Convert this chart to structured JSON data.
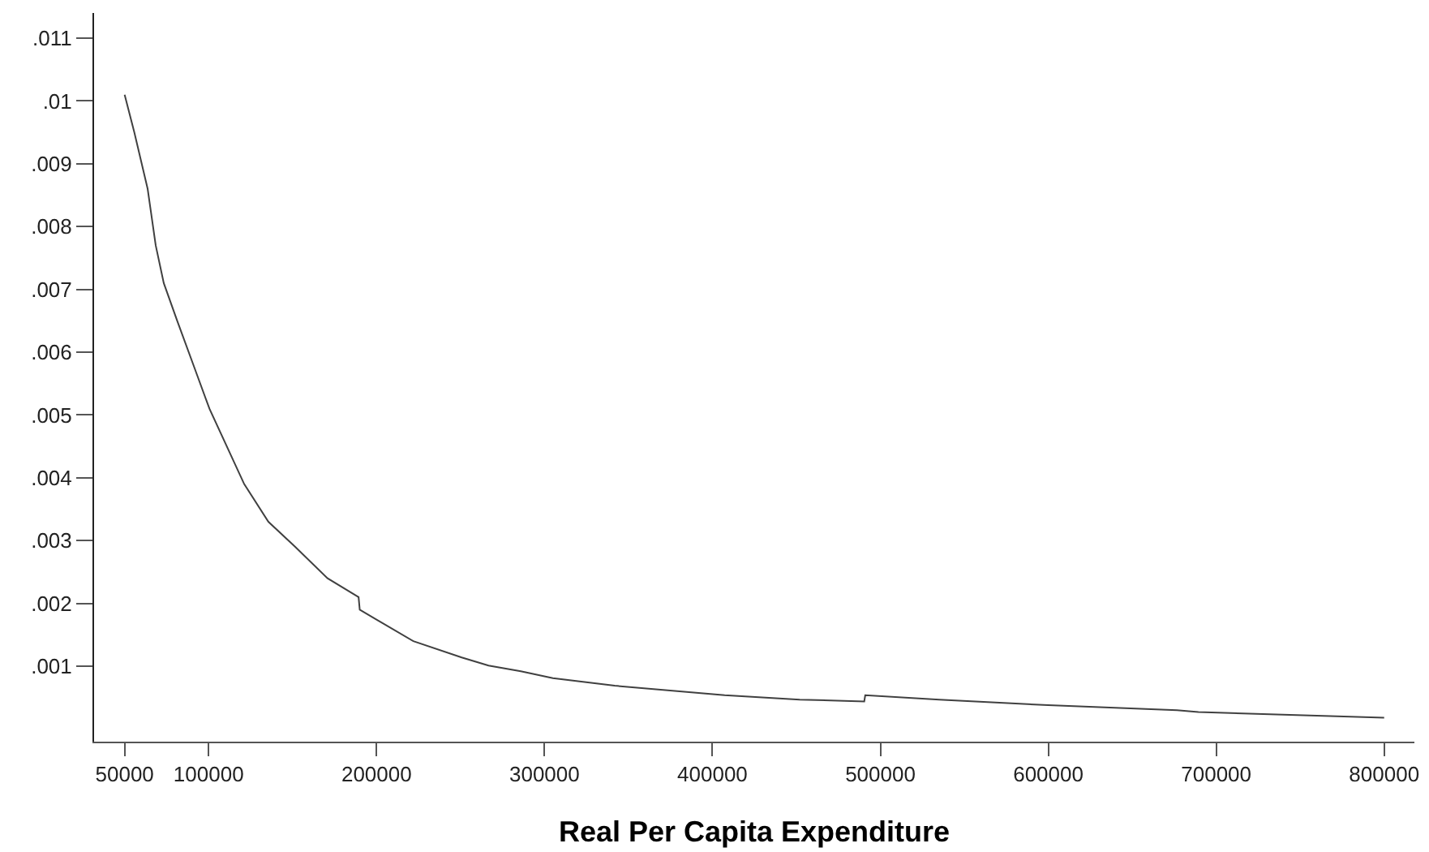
{
  "chart_data": {
    "type": "line",
    "xlabel": "Real Per Capita Expenditure",
    "x": [
      50000,
      55750,
      63700,
      68500,
      73300,
      81300,
      90900,
      100500,
      121200,
      135600,
      151600,
      170800,
      189300,
      190000,
      202700,
      221900,
      250700,
      266700,
      285900,
      305000,
      341800,
      407300,
      452000,
      490400,
      491000,
      535100,
      599900,
      676600,
      689400,
      800000
    ],
    "series": [
      {
        "color": "#404040",
        "values": [
          0.0101,
          0.0095,
          0.0086,
          0.0077,
          0.0071,
          0.0065,
          0.0058,
          0.0051,
          0.0039,
          0.0033,
          0.0029,
          0.0024,
          0.0021,
          0.0019,
          0.0017,
          0.0014,
          0.00114,
          0.00101,
          0.00092,
          0.00081,
          0.00069,
          0.00054,
          0.00047,
          0.00044,
          0.00054,
          0.00047,
          0.00038,
          0.0003,
          0.00027,
          0.00018
        ]
      }
    ],
    "xlim": [
      31800,
      818000
    ],
    "ylim": [
      -0.0002,
      0.0114
    ],
    "xticks": [
      50000,
      100000,
      200000,
      300000,
      400000,
      500000,
      600000,
      700000,
      800000
    ],
    "yticks": [
      {
        "value": 0.001,
        "label": ".001"
      },
      {
        "value": 0.002,
        "label": ".002"
      },
      {
        "value": 0.003,
        "label": ".003"
      },
      {
        "value": 0.004,
        "label": ".004"
      },
      {
        "value": 0.005,
        "label": ".005"
      },
      {
        "value": 0.006,
        "label": ".006"
      },
      {
        "value": 0.007,
        "label": ".007"
      },
      {
        "value": 0.008,
        "label": ".008"
      },
      {
        "value": 0.009,
        "label": ".009"
      },
      {
        "value": 0.01,
        "label": ".01"
      },
      {
        "value": 0.011,
        "label": ".011"
      }
    ],
    "marker": "none",
    "line_style": "solid"
  }
}
